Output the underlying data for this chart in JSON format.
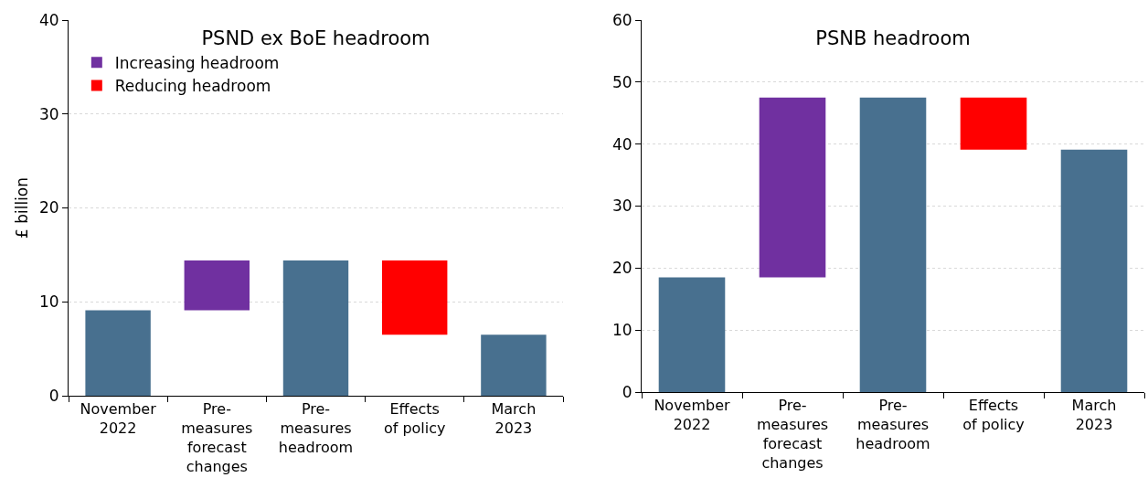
{
  "chart_data": [
    {
      "type": "bar",
      "title": "PSND ex BoE headroom",
      "ylabel": "£ billion",
      "categories": [
        "November 2022",
        "Pre-measures forecast changes",
        "Pre-measures headroom",
        "Effects of policy",
        "March 2023"
      ],
      "series": [
        {
          "color": "#48708f",
          "values": [
            9.1,
            null,
            14.4,
            null,
            6.5
          ],
          "base": [
            0,
            null,
            0,
            null,
            0
          ]
        },
        {
          "name": "Increasing headroom",
          "color": "#7030a0",
          "values": [
            null,
            5.3,
            null,
            null,
            null
          ],
          "base": [
            null,
            9.1,
            null,
            null,
            null
          ]
        },
        {
          "name": "Reducing headroom",
          "color": "#ff0000",
          "values": [
            null,
            null,
            null,
            -7.9,
            null
          ],
          "base": [
            null,
            null,
            null,
            14.4,
            null
          ]
        }
      ],
      "ylim": [
        0,
        40
      ],
      "yticks": [
        0,
        10,
        20,
        30,
        40
      ],
      "grid": "y",
      "legend": "top left"
    },
    {
      "type": "bar",
      "title": "PSNB headroom",
      "categories": [
        "November 2022",
        "Pre-measures forecast changes",
        "Pre-measures headroom",
        "Effects of policy",
        "March 2023"
      ],
      "series": [
        {
          "color": "#48708f",
          "values": [
            18.5,
            null,
            47.5,
            null,
            39.1
          ],
          "base": [
            0,
            null,
            0,
            null,
            0
          ]
        },
        {
          "color": "#7030a0",
          "values": [
            null,
            29.0,
            null,
            null,
            null
          ],
          "base": [
            null,
            18.5,
            null,
            null,
            null
          ]
        },
        {
          "color": "#ff0000",
          "values": [
            null,
            null,
            null,
            -8.4,
            null
          ],
          "base": [
            null,
            null,
            null,
            47.5,
            null
          ]
        }
      ],
      "ylim": [
        0,
        60
      ],
      "yticks": [
        0,
        10,
        20,
        30,
        40,
        50,
        60
      ],
      "grid": "y",
      "legend": false
    }
  ]
}
